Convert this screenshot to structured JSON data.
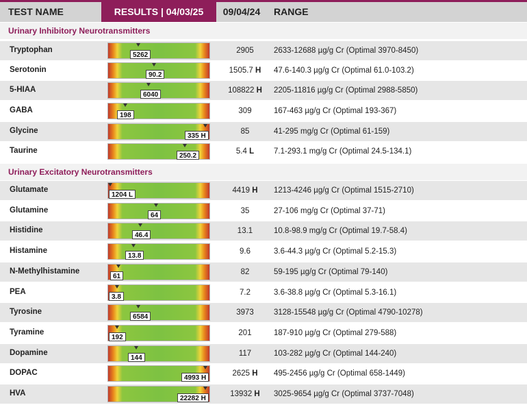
{
  "header": {
    "test_name": "TEST NAME",
    "results": "RESULTS | 04/03/25",
    "previous": "09/04/24",
    "range": "RANGE"
  },
  "sections": [
    {
      "title": "Urinary Inhibitory Neurotransmitters",
      "rows": [
        {
          "name": "Tryptophan",
          "result": "5262",
          "pos": 0.3,
          "prev": "2905",
          "flag": "",
          "range": "2633-12688 µg/g Cr (Optimal 3970-8450)"
        },
        {
          "name": "Serotonin",
          "result": "90.2",
          "pos": 0.45,
          "prev": "1505.7",
          "flag": "H",
          "range": "47.6-140.3 µg/g Cr (Optimal 61.0-103.2)"
        },
        {
          "name": "5-HIAA",
          "result": "6040",
          "pos": 0.4,
          "prev": "108822",
          "flag": "H",
          "range": "2205-11816 µg/g Cr (Optimal 2988-5850)"
        },
        {
          "name": "GABA",
          "result": "198",
          "pos": 0.17,
          "prev": "309",
          "flag": "",
          "range": "167-463 µg/g Cr (Optimal 193-367)"
        },
        {
          "name": "Glycine",
          "result": "335 H",
          "pos": 0.96,
          "prev": "85",
          "flag": "",
          "range": "41-295 mg/g Cr (Optimal 61-159)"
        },
        {
          "name": "Taurine",
          "result": "250.2",
          "pos": 0.76,
          "prev": "5.4",
          "flag": "L",
          "range": "7.1-293.1 mg/g Cr (Optimal 24.5-134.1)"
        }
      ]
    },
    {
      "title": "Urinary Excitatory Neurotransmitters",
      "rows": [
        {
          "name": "Glutamate",
          "result": "1204 L",
          "pos": 0.02,
          "prev": "4419",
          "flag": "H",
          "range": "1213-4246 µg/g Cr (Optimal 1515-2710)"
        },
        {
          "name": "Glutamine",
          "result": "64",
          "pos": 0.47,
          "prev": "35",
          "flag": "",
          "range": "27-106 mg/g Cr (Optimal 37-71)"
        },
        {
          "name": "Histidine",
          "result": "46.4",
          "pos": 0.32,
          "prev": "13.1",
          "flag": "",
          "range": "10.8-98.9 mg/g Cr (Optimal 19.7-58.4)"
        },
        {
          "name": "Histamine",
          "result": "13.8",
          "pos": 0.25,
          "prev": "9.6",
          "flag": "",
          "range": "3.6-44.3 µg/g Cr (Optimal 5.2-15.3)"
        },
        {
          "name": "N-Methylhistamine",
          "result": "61",
          "pos": 0.1,
          "prev": "82",
          "flag": "",
          "range": "59-195 µg/g Cr (Optimal 79-140)"
        },
        {
          "name": "PEA",
          "result": "3.8",
          "pos": 0.09,
          "prev": "7.2",
          "flag": "",
          "range": "3.6-38.8 µg/g Cr (Optimal 5.3-16.1)"
        },
        {
          "name": "Tyrosine",
          "result": "6584",
          "pos": 0.3,
          "prev": "3973",
          "flag": "",
          "range": "3128-15548 µg/g Cr (Optimal 4790-10278)"
        },
        {
          "name": "Tyramine",
          "result": "192",
          "pos": 0.09,
          "prev": "201",
          "flag": "",
          "range": "187-910 µg/g Cr (Optimal 279-588)"
        },
        {
          "name": "Dopamine",
          "result": "144",
          "pos": 0.28,
          "prev": "117",
          "flag": "",
          "range": "103-282 µg/g Cr (Optimal 144-240)"
        },
        {
          "name": "DOPAC",
          "result": "4993 H",
          "pos": 0.96,
          "prev": "2625",
          "flag": "H",
          "range": "495-2456 µg/g Cr (Optimal 658-1449)"
        },
        {
          "name": "HVA",
          "result": "22282 H",
          "pos": 0.96,
          "prev": "13932",
          "flag": "H",
          "range": "3025-9654 µg/g Cr (Optimal 3737-7048)"
        }
      ]
    }
  ]
}
